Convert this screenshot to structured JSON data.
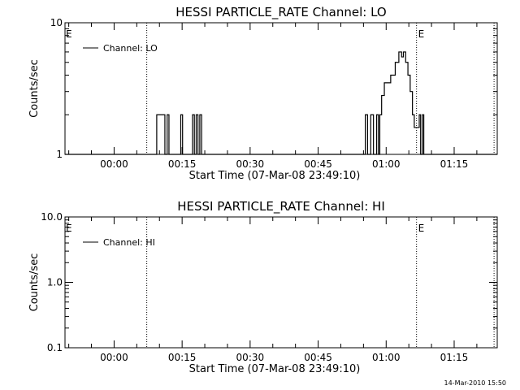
{
  "footer_timestamp": "14-Mar-2010 15:50",
  "colors": {
    "background": "#ffffff",
    "foreground": "#000000"
  },
  "chart_data": [
    {
      "type": "line",
      "title": "HESSI PARTICLE_RATE Channel: LO",
      "xlabel": "Start Time (07-Mar-08 23:49:10)",
      "ylabel": "Counts/sec",
      "yscale": "log",
      "ylim": [
        1,
        10
      ],
      "xlim_minutes": [
        -10.83,
        84.5
      ],
      "x_ticks": [
        {
          "value": 0,
          "label": "00:00"
        },
        {
          "value": 15,
          "label": "00:15"
        },
        {
          "value": 30,
          "label": "00:30"
        },
        {
          "value": 45,
          "label": "00:45"
        },
        {
          "value": 60,
          "label": "01:00"
        },
        {
          "value": 75,
          "label": "01:15"
        }
      ],
      "y_ticks": [
        {
          "value": 1,
          "label": "1"
        },
        {
          "value": 10,
          "label": "10"
        }
      ],
      "legend": {
        "position": "top-left",
        "entries": [
          "Channel: LO"
        ]
      },
      "markers": [
        {
          "x": 7.2,
          "label": "E"
        },
        {
          "x": 66.7,
          "label": "E"
        },
        {
          "x": 83.8,
          "label": ""
        }
      ],
      "series": [
        {
          "name": "Channel: LO",
          "points": [
            [
              -10.83,
              1
            ],
            [
              9.4,
              1
            ],
            [
              9.4,
              2
            ],
            [
              11.2,
              2
            ],
            [
              11.2,
              1
            ],
            [
              11.7,
              1
            ],
            [
              11.7,
              2
            ],
            [
              12.1,
              2
            ],
            [
              12.1,
              1
            ],
            [
              14.7,
              1
            ],
            [
              14.7,
              2
            ],
            [
              15.1,
              2
            ],
            [
              15.1,
              1
            ],
            [
              17.3,
              1
            ],
            [
              17.3,
              2
            ],
            [
              17.7,
              2
            ],
            [
              17.7,
              1
            ],
            [
              18.1,
              1
            ],
            [
              18.1,
              2
            ],
            [
              18.5,
              2
            ],
            [
              18.5,
              1
            ],
            [
              18.9,
              1
            ],
            [
              18.9,
              2
            ],
            [
              19.3,
              2
            ],
            [
              19.3,
              1
            ],
            [
              55.4,
              1
            ],
            [
              55.4,
              2
            ],
            [
              55.9,
              2
            ],
            [
              55.9,
              1
            ],
            [
              56.6,
              1
            ],
            [
              56.6,
              2
            ],
            [
              57.2,
              2
            ],
            [
              57.2,
              1
            ],
            [
              57.9,
              1
            ],
            [
              57.9,
              2
            ],
            [
              58.3,
              2
            ],
            [
              58.3,
              1
            ],
            [
              58.6,
              1
            ],
            [
              58.6,
              2
            ],
            [
              59.0,
              2
            ],
            [
              59.0,
              2.8
            ],
            [
              59.6,
              2.8
            ],
            [
              59.6,
              3.5
            ],
            [
              61.0,
              3.5
            ],
            [
              61.0,
              4.0
            ],
            [
              62.0,
              4.0
            ],
            [
              62.0,
              5.0
            ],
            [
              62.8,
              5.0
            ],
            [
              62.8,
              6.0
            ],
            [
              63.4,
              6.0
            ],
            [
              63.4,
              5.5
            ],
            [
              63.8,
              5.5
            ],
            [
              63.8,
              6.0
            ],
            [
              64.3,
              6.0
            ],
            [
              64.3,
              5.0
            ],
            [
              64.8,
              5.0
            ],
            [
              64.8,
              4.0
            ],
            [
              65.3,
              4.0
            ],
            [
              65.3,
              3.0
            ],
            [
              65.8,
              3.0
            ],
            [
              65.8,
              2.0
            ],
            [
              66.2,
              2.0
            ],
            [
              66.2,
              1.6
            ],
            [
              67.3,
              1.6
            ],
            [
              67.3,
              2.0
            ],
            [
              67.6,
              2.0
            ],
            [
              67.6,
              1
            ],
            [
              68.0,
              1
            ],
            [
              68.0,
              2.0
            ],
            [
              68.3,
              2.0
            ],
            [
              68.3,
              1
            ],
            [
              84.5,
              1
            ]
          ]
        }
      ]
    },
    {
      "type": "line",
      "title": "HESSI PARTICLE_RATE Channel: HI",
      "xlabel": "Start Time (07-Mar-08 23:49:10)",
      "ylabel": "Counts/sec",
      "yscale": "log",
      "ylim": [
        0.1,
        10
      ],
      "xlim_minutes": [
        -10.83,
        84.5
      ],
      "x_ticks": [
        {
          "value": 0,
          "label": "00:00"
        },
        {
          "value": 15,
          "label": "00:15"
        },
        {
          "value": 30,
          "label": "00:30"
        },
        {
          "value": 45,
          "label": "00:45"
        },
        {
          "value": 60,
          "label": "01:00"
        },
        {
          "value": 75,
          "label": "01:15"
        }
      ],
      "y_ticks": [
        {
          "value": 0.1,
          "label": "0.1"
        },
        {
          "value": 1,
          "label": "1.0"
        },
        {
          "value": 10,
          "label": "10.0"
        }
      ],
      "legend": {
        "position": "top-left",
        "entries": [
          "Channel: HI"
        ]
      },
      "markers": [
        {
          "x": 7.2,
          "label": "E"
        },
        {
          "x": 66.7,
          "label": "E"
        },
        {
          "x": 83.8,
          "label": ""
        }
      ],
      "series": [
        {
          "name": "Channel: HI",
          "points": []
        }
      ]
    }
  ]
}
